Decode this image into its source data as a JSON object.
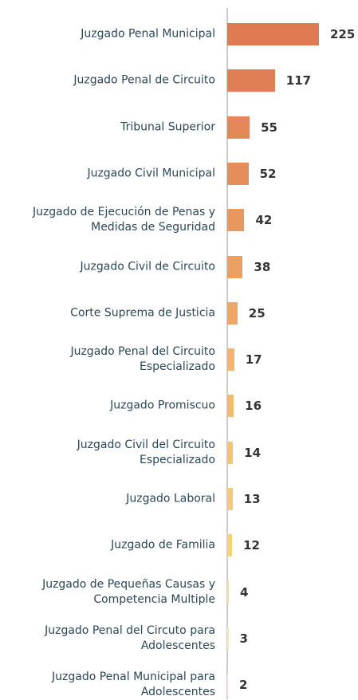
{
  "chart_data": {
    "type": "bar",
    "orientation": "horizontal",
    "categories": [
      "Juzgado Penal Municipal",
      "Juzgado Penal de Circuito",
      "Tribunal Superior",
      "Juzgado Civil Municipal",
      "Juzgado de Ejecución de Penas y Medidas de Seguridad",
      "Juzgado Civil de Circuito",
      "Corte Suprema de Justicia",
      "Juzgado Penal del Circuito Especializado",
      "Juzgado Promiscuo",
      "Juzgado Civil del Circuito Especializado",
      "Juzgado Laboral",
      "Juzgado de Familia",
      "Juzgado de Pequeñas Causas y Competencia Multiple",
      "Juzgado Penal del Circuto para Adolescentes",
      "Juzgado Penal Municipal para Adolescentes"
    ],
    "values": [
      225,
      117,
      55,
      52,
      42,
      38,
      25,
      17,
      16,
      14,
      13,
      12,
      4,
      3,
      2
    ],
    "colors": [
      "#e07a52",
      "#e07f55",
      "#e38858",
      "#e58e5b",
      "#e8975e",
      "#eaa062",
      "#eca864",
      "#efb868",
      "#f0bd6a",
      "#f2c56f",
      "#f3cc75",
      "#f4d27a",
      "#f6e0a8",
      "#f8e8c0",
      "#f8e8c0"
    ]
  }
}
